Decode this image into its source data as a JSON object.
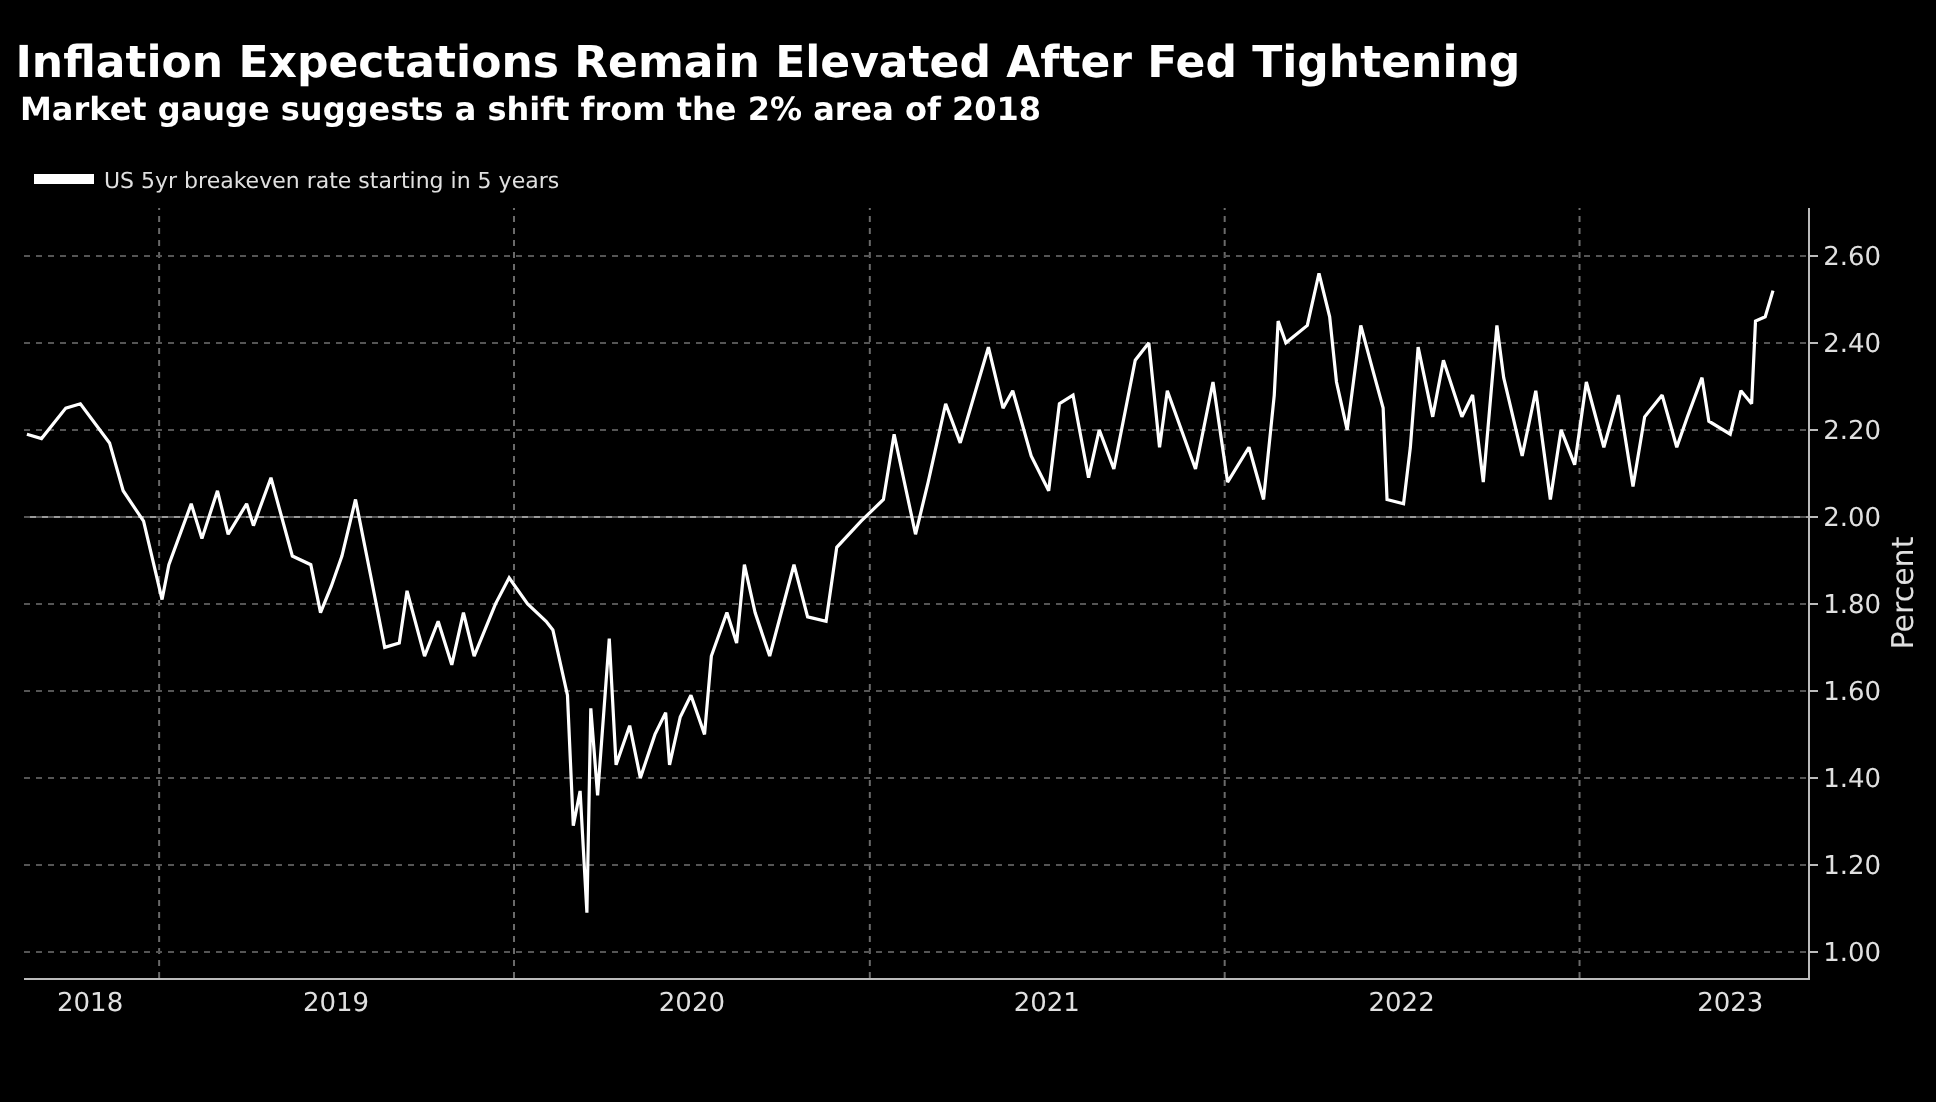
{
  "chart_data": {
    "type": "line",
    "title": "Inflation Expectations Remain Elevated After Fed Tightening",
    "subtitle": "Market gauge suggests a shift from the 2% area of 2018",
    "ylabel": "Percent",
    "x": [
      "2018-08-18",
      "2018-09-02",
      "2018-09-27",
      "2018-10-12",
      "2018-11-11",
      "2018-11-25",
      "2018-12-16",
      "2019-01-04",
      "2019-01-11",
      "2019-02-03",
      "2019-02-14",
      "2019-03-02",
      "2019-03-13",
      "2019-04-01",
      "2019-04-08",
      "2019-04-26",
      "2019-05-18",
      "2019-06-06",
      "2019-06-16",
      "2019-06-27",
      "2019-07-08",
      "2019-07-22",
      "2019-08-07",
      "2019-08-21",
      "2019-09-05",
      "2019-09-13",
      "2019-10-01",
      "2019-10-15",
      "2019-10-29",
      "2019-11-10",
      "2019-11-21",
      "2019-12-13",
      "2019-12-27",
      "2020-01-15",
      "2020-02-03",
      "2020-02-10",
      "2020-02-25",
      "2020-03-02",
      "2020-03-09",
      "2020-03-16",
      "2020-03-20",
      "2020-03-27",
      "2020-04-08",
      "2020-04-15",
      "2020-04-29",
      "2020-05-10",
      "2020-05-25",
      "2020-06-05",
      "2020-06-09",
      "2020-06-20",
      "2020-07-01",
      "2020-07-15",
      "2020-07-22",
      "2020-08-07",
      "2020-08-17",
      "2020-08-25",
      "2020-09-05",
      "2020-09-20",
      "2020-10-15",
      "2020-10-29",
      "2020-11-17",
      "2020-11-28",
      "2020-12-23",
      "2021-01-15",
      "2021-01-26",
      "2021-02-17",
      "2021-03-02",
      "2021-03-20",
      "2021-04-04",
      "2021-05-03",
      "2021-05-18",
      "2021-05-28",
      "2021-06-16",
      "2021-07-04",
      "2021-07-15",
      "2021-07-29",
      "2021-08-14",
      "2021-08-25",
      "2021-09-09",
      "2021-10-01",
      "2021-10-15",
      "2021-10-26",
      "2021-11-03",
      "2021-12-02",
      "2021-12-20",
      "2022-01-04",
      "2022-01-26",
      "2022-02-10",
      "2022-02-21",
      "2022-02-25",
      "2022-03-05",
      "2022-03-27",
      "2022-04-08",
      "2022-04-19",
      "2022-04-26",
      "2022-05-07",
      "2022-05-21",
      "2022-06-02",
      "2022-06-13",
      "2022-06-17",
      "2022-07-04",
      "2022-07-11",
      "2022-07-19",
      "2022-08-03",
      "2022-08-14",
      "2022-09-02",
      "2022-09-13",
      "2022-09-24",
      "2022-10-08",
      "2022-10-15",
      "2022-11-03",
      "2022-11-17",
      "2022-12-02",
      "2022-12-13",
      "2022-12-27",
      "2023-01-08",
      "2023-01-26",
      "2023-02-10",
      "2023-02-25",
      "2023-03-09",
      "2023-03-27",
      "2023-04-11",
      "2023-04-22",
      "2023-05-07",
      "2023-05-14",
      "2023-06-05",
      "2023-06-16",
      "2023-06-27",
      "2023-07-01",
      "2023-07-11",
      "2023-07-19"
    ],
    "series": [
      {
        "name": "US 5yr breakeven rate starting in 5 years",
        "color": "#ffffff",
        "values": [
          2.19,
          2.18,
          2.25,
          2.26,
          2.17,
          2.06,
          1.99,
          1.81,
          1.89,
          2.03,
          1.95,
          2.06,
          1.96,
          2.03,
          1.98,
          2.09,
          1.91,
          1.89,
          1.78,
          1.84,
          1.91,
          2.04,
          1.86,
          1.7,
          1.71,
          1.83,
          1.68,
          1.76,
          1.66,
          1.78,
          1.68,
          1.8,
          1.86,
          1.8,
          1.76,
          1.74,
          1.59,
          1.29,
          1.37,
          1.09,
          1.56,
          1.36,
          1.72,
          1.43,
          1.52,
          1.4,
          1.5,
          1.55,
          1.43,
          1.54,
          1.59,
          1.5,
          1.68,
          1.78,
          1.71,
          1.89,
          1.78,
          1.68,
          1.89,
          1.77,
          1.76,
          1.93,
          1.99,
          2.04,
          2.19,
          1.96,
          2.08,
          2.26,
          2.17,
          2.39,
          2.25,
          2.29,
          2.14,
          2.06,
          2.26,
          2.28,
          2.09,
          2.2,
          2.11,
          2.36,
          2.4,
          2.16,
          2.29,
          2.11,
          2.31,
          2.08,
          2.16,
          2.04,
          2.28,
          2.45,
          2.4,
          2.44,
          2.56,
          2.46,
          2.31,
          2.2,
          2.44,
          2.34,
          2.25,
          2.04,
          2.03,
          2.16,
          2.39,
          2.23,
          2.36,
          2.23,
          2.28,
          2.08,
          2.44,
          2.32,
          2.14,
          2.29,
          2.04,
          2.2,
          2.12,
          2.31,
          2.16,
          2.28,
          2.07,
          2.23,
          2.28,
          2.16,
          2.23,
          2.32,
          2.22,
          2.19,
          2.29,
          2.26,
          2.45,
          2.46,
          2.52
        ]
      }
    ],
    "xlim": [
      "2018-08-15",
      "2023-08-24"
    ],
    "xticks": [
      {
        "value": "2018-10-22",
        "label": "2018"
      },
      {
        "value": "2019-07-02",
        "label": "2019"
      },
      {
        "value": "2020-07-02",
        "label": "2020"
      },
      {
        "value": "2021-07-02",
        "label": "2021"
      },
      {
        "value": "2022-07-02",
        "label": "2022"
      },
      {
        "value": "2023-06-05",
        "label": "2023"
      }
    ],
    "ylim": [
      0.94,
      2.71
    ],
    "yticks": [
      {
        "value": 1.0,
        "label": "1.00"
      },
      {
        "value": 1.2,
        "label": "1.20"
      },
      {
        "value": 1.4,
        "label": "1.40"
      },
      {
        "value": 1.6,
        "label": "1.60"
      },
      {
        "value": 1.8,
        "label": "1.80"
      },
      {
        "value": 2.0,
        "label": "2.00"
      },
      {
        "value": 2.2,
        "label": "2.20"
      },
      {
        "value": 2.4,
        "label": "2.40"
      },
      {
        "value": 2.6,
        "label": "2.60"
      }
    ],
    "grid": "y",
    "ref_lines": [
      {
        "axis": "y",
        "value": 2.0,
        "color": "#9a9a9a",
        "line_style": "solid"
      },
      {
        "axis": "x",
        "value": "2019-01-01",
        "color": "#6a6a6a",
        "line_style": "dotted"
      },
      {
        "axis": "x",
        "value": "2020-01-01",
        "color": "#6a6a6a",
        "line_style": "dotted"
      },
      {
        "axis": "x",
        "value": "2021-01-01",
        "color": "#6a6a6a",
        "line_style": "dotted"
      },
      {
        "axis": "x",
        "value": "2022-01-01",
        "color": "#6a6a6a",
        "line_style": "dotted"
      },
      {
        "axis": "x",
        "value": "2023-01-01",
        "color": "#6a6a6a",
        "line_style": "dotted"
      }
    ],
    "legend": "top left",
    "marker": "none",
    "line_style": "solid"
  }
}
